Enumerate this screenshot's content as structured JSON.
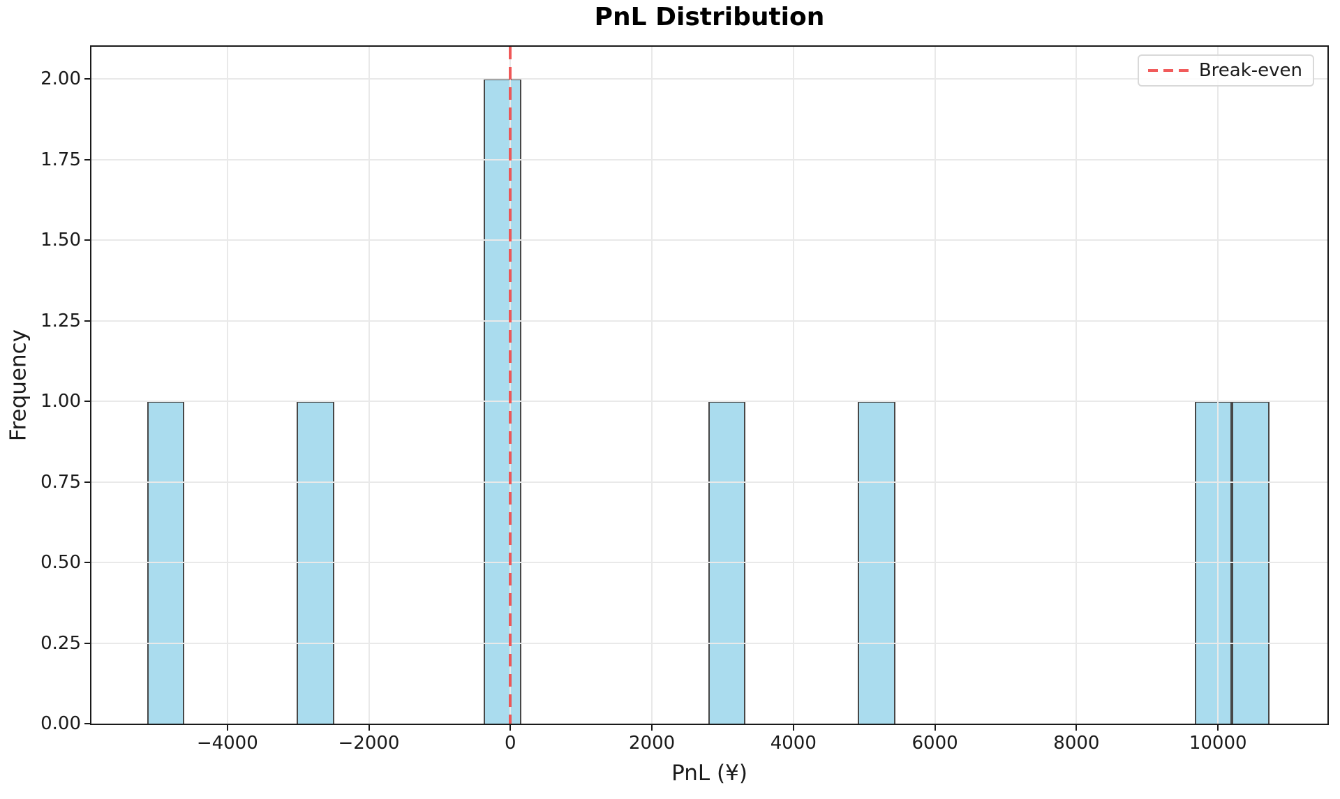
{
  "chart_data": {
    "type": "bar",
    "subtype": "histogram",
    "title": "PnL Distribution",
    "xlabel": "PnL (¥)",
    "ylabel": "Frequency",
    "xlim": [
      -5921,
      11547
    ],
    "ylim": [
      0,
      2.1
    ],
    "grid": true,
    "legend_position": "upper right",
    "x_ticks": [
      {
        "value": -4000,
        "label": "−4000"
      },
      {
        "value": -2000,
        "label": "−2000"
      },
      {
        "value": 0,
        "label": "0"
      },
      {
        "value": 2000,
        "label": "2000"
      },
      {
        "value": 4000,
        "label": "4000"
      },
      {
        "value": 6000,
        "label": "6000"
      },
      {
        "value": 8000,
        "label": "8000"
      },
      {
        "value": 10000,
        "label": "10000"
      }
    ],
    "y_ticks": [
      {
        "value": 0.0,
        "label": "0.00"
      },
      {
        "value": 0.25,
        "label": "0.25"
      },
      {
        "value": 0.5,
        "label": "0.50"
      },
      {
        "value": 0.75,
        "label": "0.75"
      },
      {
        "value": 1.0,
        "label": "1.00"
      },
      {
        "value": 1.25,
        "label": "1.25"
      },
      {
        "value": 1.5,
        "label": "1.50"
      },
      {
        "value": 1.75,
        "label": "1.75"
      },
      {
        "value": 2.0,
        "label": "2.00"
      }
    ],
    "bars": [
      {
        "x0": -5133,
        "x1": -4604,
        "frequency": 1
      },
      {
        "x0": -3018,
        "x1": -2490,
        "frequency": 1
      },
      {
        "x0": -375,
        "x1": 154,
        "frequency": 2
      },
      {
        "x0": 2797,
        "x1": 3326,
        "frequency": 1
      },
      {
        "x0": 4912,
        "x1": 5441,
        "frequency": 1
      },
      {
        "x0": 9670,
        "x1": 10199,
        "frequency": 1
      },
      {
        "x0": 10199,
        "x1": 10728,
        "frequency": 1
      }
    ],
    "breakeven_line": {
      "x": 0,
      "style": "dashed"
    },
    "legend": {
      "label": "Break-even"
    },
    "colors": {
      "bar_fill": "#aadcee",
      "bar_edge": "#474747",
      "grid": "#e9e9e9",
      "breakeven": "#ef4444",
      "spine": "#1a1a1a",
      "text": "#1a1a1a",
      "legend_border": "#d9d9d9"
    }
  }
}
